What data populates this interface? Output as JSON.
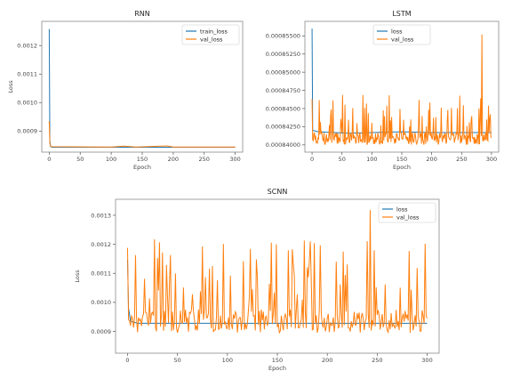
{
  "chart_data": [
    {
      "type": "line",
      "title": "RNN",
      "xlabel": "Epoch",
      "ylabel": "Loss",
      "xlim": [
        -12,
        312
      ],
      "ylim": [
        0.000826,
        0.001285
      ],
      "x_ticks": [
        0,
        50,
        100,
        150,
        200,
        250,
        300
      ],
      "y_ticks": [
        0.0009,
        0.001,
        0.0011,
        0.0012
      ],
      "y_tick_labels": [
        "0.0009",
        "0.0010",
        "0.0011",
        "0.0012"
      ],
      "grid": false,
      "legend": "top-right",
      "series": [
        {
          "name": "train_loss",
          "color": "#1f77b4",
          "points": [
            [
              0,
              0.001258
            ],
            [
              1,
              0.000868
            ],
            [
              2,
              0.000846
            ],
            [
              4,
              0.000843
            ],
            [
              300,
              0.000843
            ]
          ]
        },
        {
          "name": "val_loss",
          "color": "#ff7f0e",
          "points": [
            [
              0,
              0.000935
            ],
            [
              1,
              0.000855
            ],
            [
              3,
              0.000845
            ],
            [
              100,
              0.000844
            ],
            [
              120,
              0.000847
            ],
            [
              140,
              0.000844
            ],
            [
              190,
              0.000848
            ],
            [
              200,
              0.000844
            ],
            [
              300,
              0.000844
            ]
          ]
        }
      ]
    },
    {
      "type": "line",
      "title": "LSTM",
      "xlabel": "Epoch",
      "ylabel": "",
      "xlim": [
        -12,
        312
      ],
      "ylim": [
        0.000839,
        0.000857
      ],
      "x_ticks": [
        0,
        50,
        100,
        150,
        200,
        250,
        300
      ],
      "y_ticks": [
        0.00084,
        0.0008425,
        0.000845,
        0.0008475,
        0.00085,
        0.0008525,
        0.000855
      ],
      "y_tick_labels": [
        "0.00084000",
        "0.00084250",
        "0.00084500",
        "0.00084750",
        "0.00085000",
        "0.00085250",
        "0.00085500"
      ],
      "grid": false,
      "legend": "top-center",
      "series": [
        {
          "name": "loss",
          "color": "#1f77b4",
          "points": [
            [
              0,
              0.000856
            ],
            [
              1,
              0.000842
            ],
            [
              10,
              0.0008418
            ],
            [
              60,
              0.0008416
            ],
            [
              150,
              0.0008418
            ],
            [
              200,
              0.0008417
            ],
            [
              300,
              0.0008417
            ]
          ]
        },
        {
          "name": "val_loss",
          "color": "#ff7f0e",
          "spike_value": 0.0008552,
          "spike_epoch": 284,
          "baseline": 0.00084,
          "noise_peak": 0.000847
        }
      ]
    },
    {
      "type": "line",
      "title": "SCNN",
      "xlabel": "Epoch",
      "ylabel": "Loss",
      "xlim": [
        -12,
        312
      ],
      "ylim": [
        0.000825,
        0.001355
      ],
      "x_ticks": [
        0,
        50,
        100,
        150,
        200,
        250,
        300
      ],
      "y_ticks": [
        0.0009,
        0.001,
        0.0011,
        0.0012,
        0.0013
      ],
      "y_tick_labels": [
        "0.0009",
        "0.0010",
        "0.0011",
        "0.0012",
        "0.0013"
      ],
      "grid": false,
      "legend": "top-right",
      "series": [
        {
          "name": "loss",
          "color": "#1f77b4",
          "points": [
            [
              0,
              0.001148
            ],
            [
              1,
              0.00098
            ],
            [
              3,
              0.000935
            ],
            [
              10,
              0.000928
            ],
            [
              300,
              0.000928
            ]
          ]
        },
        {
          "name": "val_loss",
          "color": "#ff7f0e",
          "spike_value": 0.001318,
          "spike_epoch": 243,
          "baseline": 0.000895,
          "noise_peak": 0.00122
        }
      ]
    }
  ]
}
